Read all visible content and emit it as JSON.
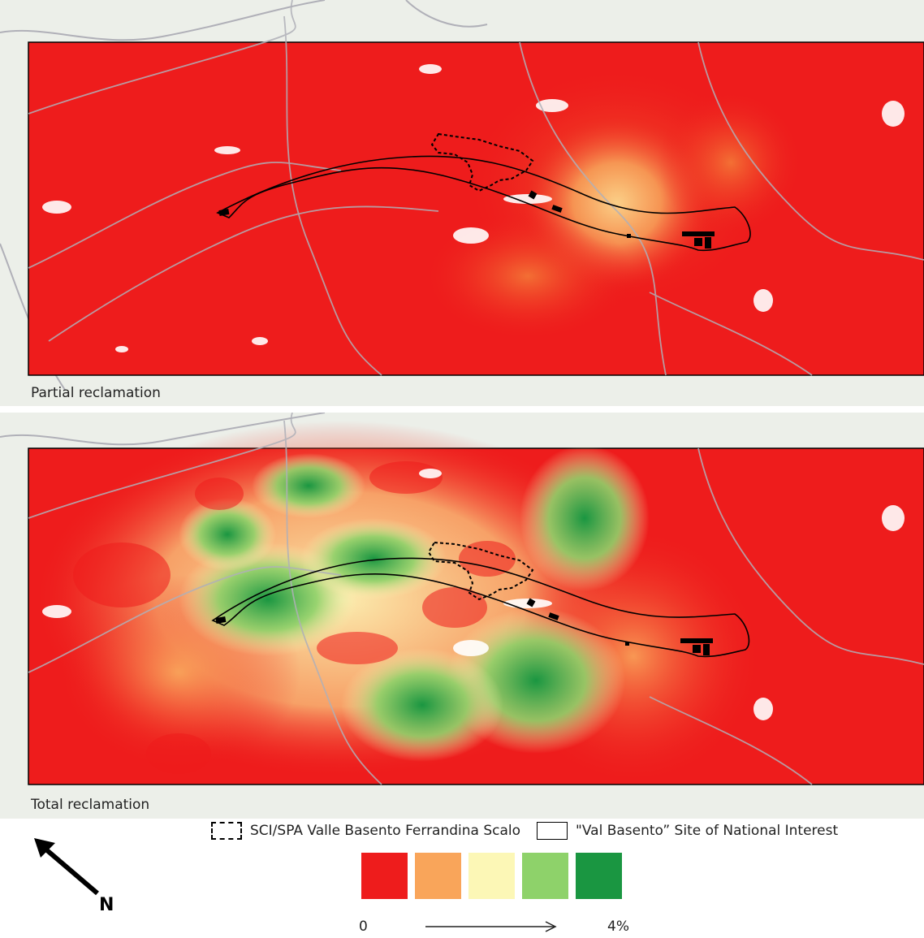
{
  "panels": {
    "top_label": "Partial reclamation",
    "bottom_label": "Total reclamation"
  },
  "legend": {
    "sci_spa_label": "SCI/SPA Valle Basento Ferrandina Scalo",
    "sin_label": "\"Val Basento” Site of National Interest"
  },
  "scale": {
    "min_label": "0",
    "max_label": "4%",
    "colors": [
      "#ee1c1c",
      "#f9a55a",
      "#fcf7b6",
      "#8ed26a",
      "#1a9641"
    ]
  },
  "north": {
    "label": "N"
  },
  "colors": {
    "background_red": "#ee1c1c",
    "basemap": "#ecefe9",
    "boundary": "#000000",
    "roads": "#b0b0b8"
  }
}
